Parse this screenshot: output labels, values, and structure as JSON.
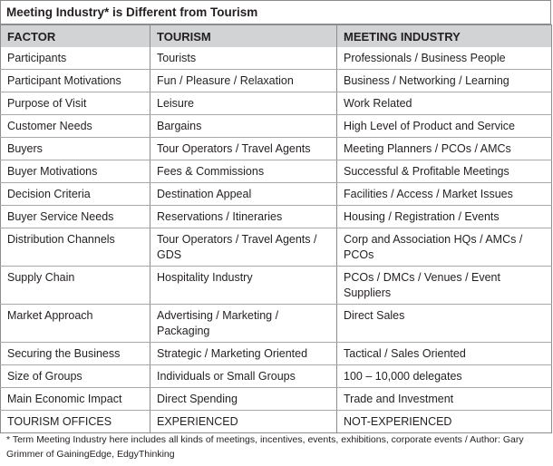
{
  "title": "Meeting Industry* is Different from Tourism",
  "headers": [
    "FACTOR",
    "TOURISM",
    "MEETING INDUSTRY"
  ],
  "rows": [
    [
      "Participants",
      "Tourists",
      "Professionals / Business People"
    ],
    [
      "Participant Motivations",
      "Fun / Pleasure / Relaxation",
      "Business / Networking / Learning"
    ],
    [
      "Purpose of Visit",
      "Leisure",
      "Work Related"
    ],
    [
      "Customer Needs",
      "Bargains",
      "High Level of Product and Service"
    ],
    [
      "Buyers",
      "Tour Operators / Travel Agents",
      "Meeting Planners / PCOs / AMCs"
    ],
    [
      "Buyer Motivations",
      "Fees & Commissions",
      "Successful & Profitable Meetings"
    ],
    [
      "Decision Criteria",
      "Destination Appeal",
      "Facilities / Access / Market Issues"
    ],
    [
      "Buyer Service Needs",
      "Reservations / Itineraries",
      "Housing / Registration / Events"
    ],
    [
      "Distribution Channels",
      "Tour Operators / Travel Agents / GDS",
      "Corp and Association HQs / AMCs / PCOs"
    ],
    [
      "Supply Chain",
      "Hospitality Industry",
      "PCOs / DMCs / Venues / Event Suppliers"
    ],
    [
      "Market Approach",
      "Advertising / Marketing / Packaging",
      "Direct Sales"
    ],
    [
      "Securing the Business",
      "Strategic / Marketing Oriented",
      "Tactical / Sales Oriented"
    ],
    [
      "Size of Groups",
      "Individuals or Small Groups",
      "100 – 10,000 delegates"
    ],
    [
      "Main Economic Impact",
      "Direct Spending",
      "Trade and Investment"
    ],
    [
      "TOURISM OFFICES",
      "EXPERIENCED",
      "NOT-EXPERIENCED"
    ]
  ],
  "footnote": "* Term Meeting Industry here includes all kinds of meetings, incentives, events, exhibitions, corporate events / Author: Gary Grimmer of GainingEdge, EdgyThinking"
}
